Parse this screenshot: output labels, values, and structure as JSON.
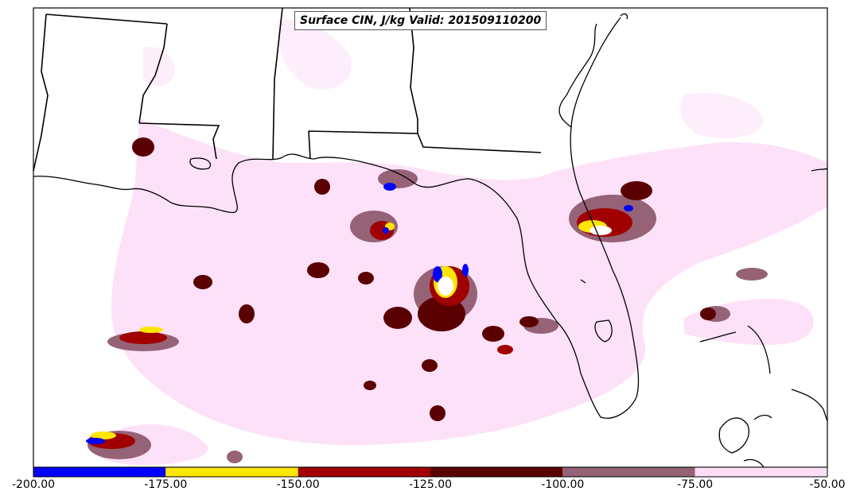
{
  "title": "Surface CIN, J/kg Valid: 201509110200",
  "colorbar": {
    "bins": [
      {
        "from": -200,
        "to": -175,
        "color": "#0000ff"
      },
      {
        "from": -175,
        "to": -150,
        "color": "#ffe600"
      },
      {
        "from": -150,
        "to": -125,
        "color": "#a00000"
      },
      {
        "from": -125,
        "to": -100,
        "color": "#5a0000"
      },
      {
        "from": -100,
        "to": -75,
        "color": "#956276"
      },
      {
        "from": -75,
        "to": -50,
        "color": "#fde0f8"
      }
    ],
    "ticks": [
      "-200.00",
      "-175.00",
      "-150.00",
      "-125.00",
      "-100.00",
      "-75.00",
      "-50.00"
    ]
  }
}
